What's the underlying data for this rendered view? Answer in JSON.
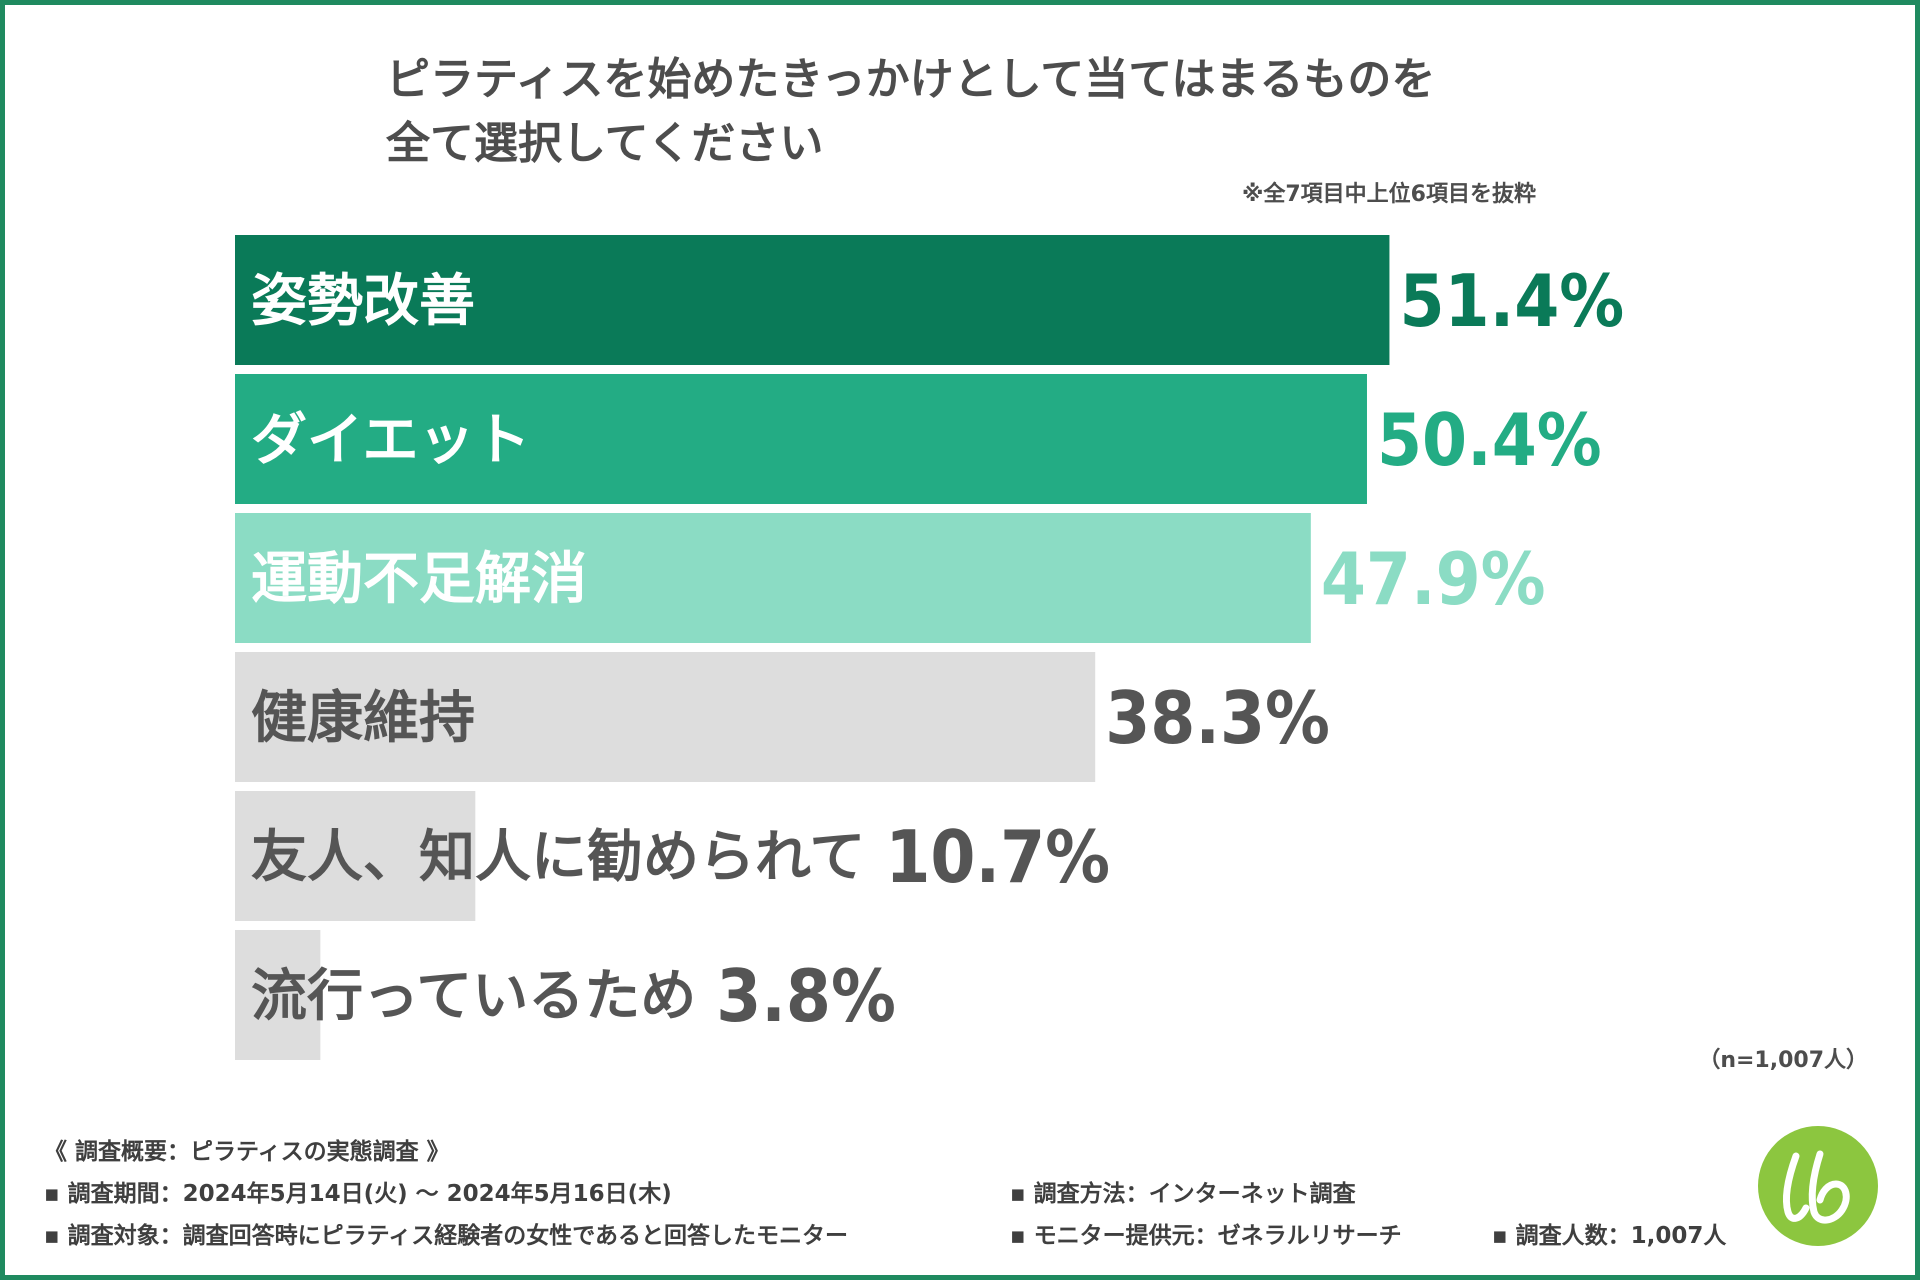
{
  "chart_data": {
    "type": "bar",
    "orientation": "horizontal",
    "title_lines": [
      "ピラティスを始めたきっかけとして当てはまるものを",
      "全て選択してください"
    ],
    "note": "※全7項目中上位6項目を抜粋",
    "categories": [
      "姿勢改善",
      "ダイエット",
      "運動不足解消",
      "健康維持",
      "友人、知人に勧められて",
      "流行っているため"
    ],
    "values": [
      51.4,
      50.4,
      47.9,
      38.3,
      10.7,
      3.8
    ],
    "value_labels": [
      "51.4%",
      "50.4%",
      "47.9%",
      "38.3%",
      "10.7%",
      "3.8%"
    ],
    "bar_colors": [
      "#0a7a58",
      "#23ac84",
      "#8bdcc4",
      "#dddddd",
      "#dddddd",
      "#dddddd"
    ],
    "label_colors": [
      "#ffffff",
      "#ffffff",
      "#ffffff",
      "#555555",
      "#555555",
      "#555555"
    ],
    "value_colors": [
      "#0a7a58",
      "#23ac84",
      "#8bdcc4",
      "#555555",
      "#555555",
      "#555555"
    ],
    "unit": "%",
    "xlim": [
      0,
      60
    ],
    "sample_size": "（n=1,007人）"
  },
  "survey": {
    "heading": "《 調査概要：ピラティスの実態調査 》",
    "period": "▪ 調査期間：2024年5月14日(火) 〜 2024年5月16日(木)",
    "method": "▪ 調査方法：インターネット調査",
    "target": "▪ 調査対象：調査回答時にピラティス経験者の女性であると回答したモニター",
    "provider": "▪ モニター提供元：ゼネラルリサーチ",
    "count": "▪ 調査人数：1,007人"
  },
  "logo": {
    "text": "lb",
    "color": "#8cc63f"
  },
  "theme": {
    "border": "#1f8a5f",
    "text": "#4d4d4d"
  }
}
